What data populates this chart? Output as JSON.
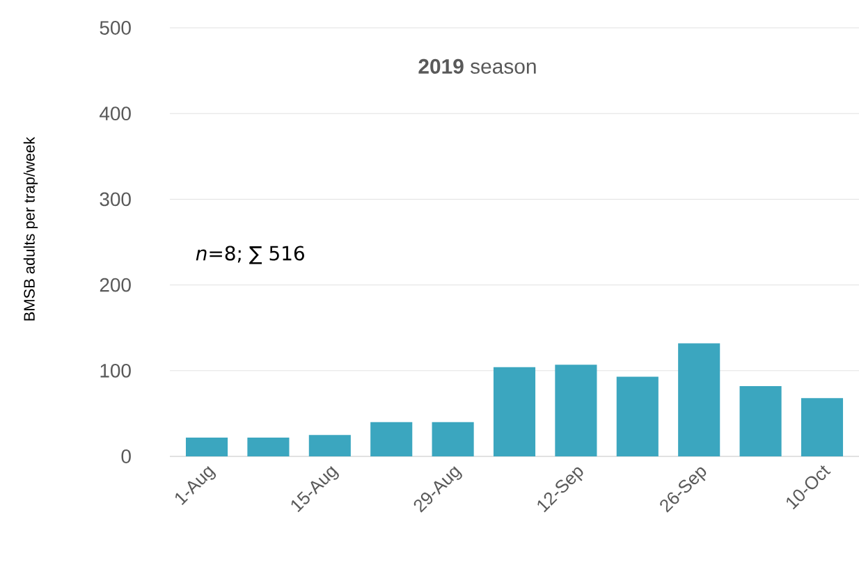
{
  "chart_data": {
    "type": "bar",
    "title": "**2019** season",
    "ylabel": "BMSB adults per trap/week",
    "categories": [
      "1-Aug",
      null,
      "15-Aug",
      null,
      "29-Aug",
      null,
      "12-Sep",
      null,
      "26-Sep",
      null,
      "10-Oct"
    ],
    "values": [
      22,
      22,
      25,
      40,
      40,
      104,
      107,
      93,
      132,
      82,
      68
    ],
    "color": "#3ba6bf",
    "ylim": [
      0,
      500
    ],
    "yticks": [
      0,
      100,
      200,
      300,
      400,
      500
    ],
    "grid": "y",
    "annotations": [
      "*n*=8;  ∑ 516"
    ]
  }
}
